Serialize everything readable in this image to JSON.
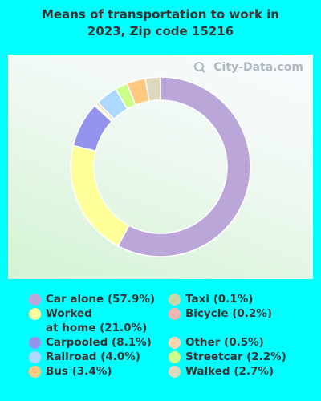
{
  "title_line1": "Means of transportation to work in",
  "title_line2": "2023, Zip code 15216",
  "watermark": "City-Data.com",
  "colors": {
    "background": "#00ffff"
  },
  "chart_data": {
    "type": "pie",
    "donut": true,
    "legend_position": "bottom",
    "slices": [
      {
        "label": "Car alone",
        "value": 57.9,
        "display": "Car alone (57.9%)",
        "color": "#bba6d9"
      },
      {
        "label": "Worked at home",
        "value": 21.0,
        "display": "Worked\nat home (21.0%)",
        "color": "#ffff99"
      },
      {
        "label": "Carpooled",
        "value": 8.1,
        "display": "Carpooled (8.1%)",
        "color": "#9494ee"
      },
      {
        "label": "Taxi",
        "value": 0.1,
        "display": "Taxi (0.1%)",
        "color": "#c9d6a9"
      },
      {
        "label": "Bicycle",
        "value": 0.2,
        "display": "Bicycle (0.2%)",
        "color": "#f5b3b3"
      },
      {
        "label": "Other",
        "value": 0.5,
        "display": "Other (0.5%)",
        "color": "#f9d7b0"
      },
      {
        "label": "Railroad",
        "value": 4.0,
        "display": "Railroad (4.0%)",
        "color": "#abd9ff"
      },
      {
        "label": "Streetcar",
        "value": 2.2,
        "display": "Streetcar (2.2%)",
        "color": "#ccff88"
      },
      {
        "label": "Bus",
        "value": 3.4,
        "display": "Bus (3.4%)",
        "color": "#ffc982"
      },
      {
        "label": "Walked",
        "value": 2.7,
        "display": "Walked (2.7%)",
        "color": "#ddd9bf"
      }
    ],
    "ring_order": [
      "Car alone",
      "Worked at home",
      "Carpooled",
      "Taxi",
      "Bicycle",
      "Other",
      "Railroad",
      "Streetcar",
      "Bus",
      "Walked"
    ],
    "legend_left": [
      "Car alone",
      "Worked at home",
      "Carpooled",
      "Railroad",
      "Bus"
    ],
    "legend_right": [
      "Taxi",
      "Bicycle",
      "Other",
      "Streetcar",
      "Walked"
    ]
  }
}
